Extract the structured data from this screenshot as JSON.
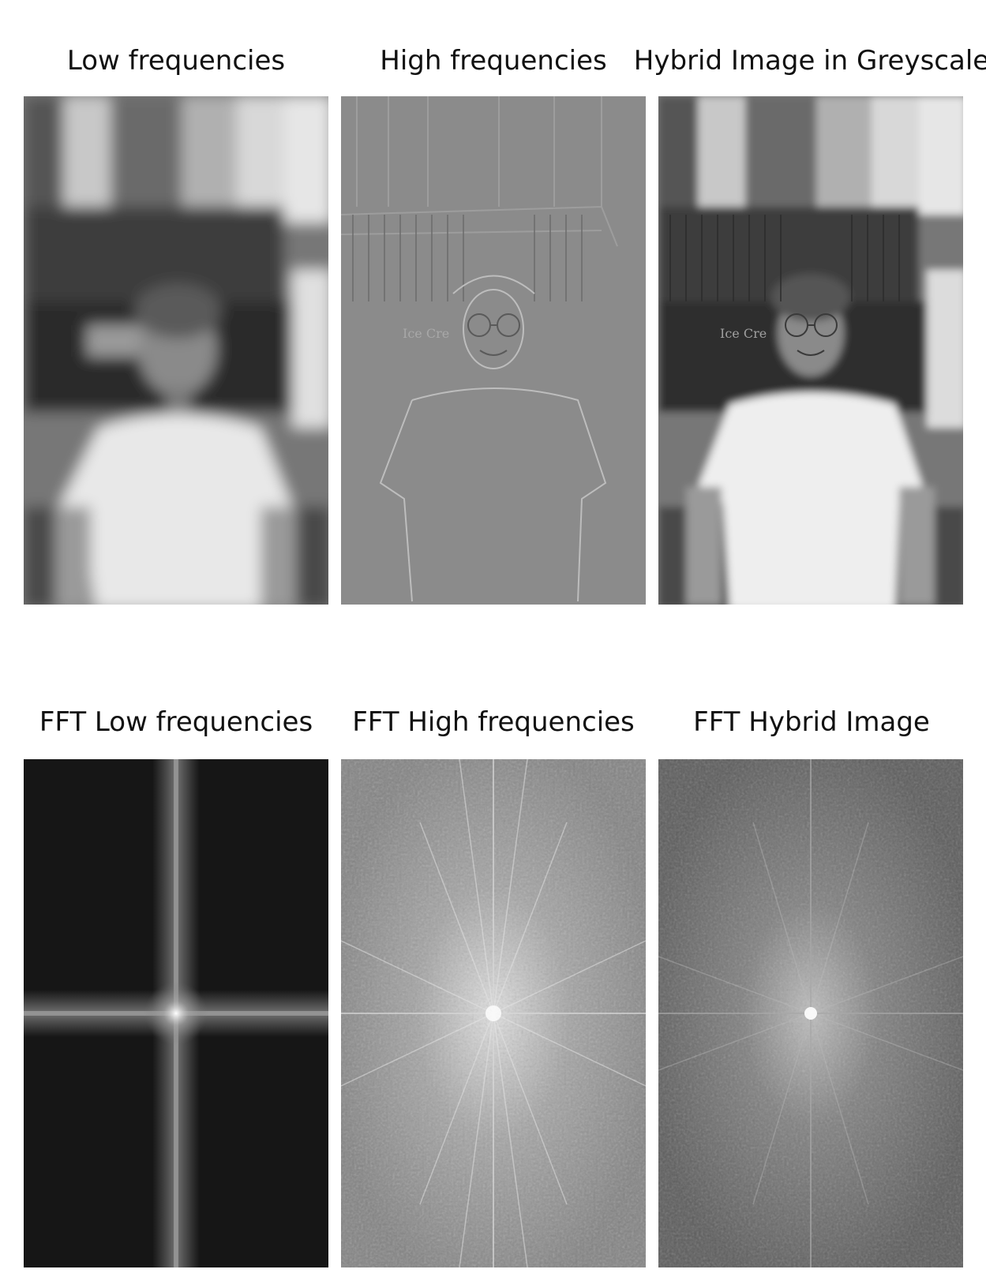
{
  "figure": {
    "top_row": [
      {
        "title": "Low frequencies",
        "scene": "blurred-portrait"
      },
      {
        "title": "High frequencies",
        "scene": "edge-portrait"
      },
      {
        "title": "Hybrid Image in Greyscale",
        "scene": "hybrid-portrait"
      }
    ],
    "bottom_row": [
      {
        "title": "FFT Low frequencies",
        "scene": "fft-low"
      },
      {
        "title": "FFT High frequencies",
        "scene": "fft-high"
      },
      {
        "title": "FFT Hybrid Image",
        "scene": "fft-hybrid"
      }
    ],
    "sign_text": "Ice Cre"
  }
}
